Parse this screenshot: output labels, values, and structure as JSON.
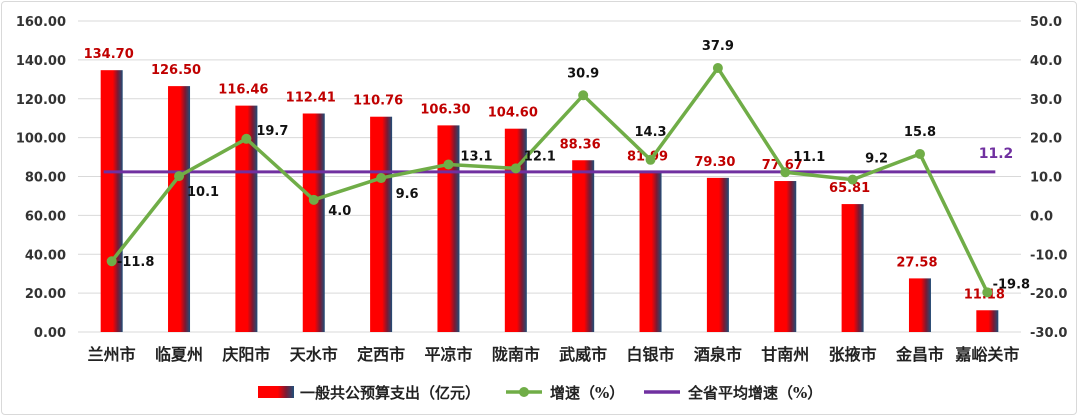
{
  "chart_data": {
    "type": "bar",
    "categories": [
      "兰州市",
      "临夏州",
      "庆阳市",
      "天水市",
      "定西市",
      "平凉市",
      "陇南市",
      "武威市",
      "白银市",
      "酒泉市",
      "甘南州",
      "张掖市",
      "金昌市",
      "嘉峪关市"
    ],
    "series": [
      {
        "name": "一般共公预算支出（亿元）",
        "type": "bar",
        "axis": "left",
        "values": [
          134.7,
          126.5,
          116.46,
          112.41,
          110.76,
          106.3,
          104.6,
          88.36,
          81.99,
          79.3,
          77.67,
          65.81,
          27.58,
          11.18
        ],
        "labels": [
          "134.70",
          "126.50",
          "116.46",
          "112.41",
          "110.76",
          "106.30",
          "104.60",
          "88.36",
          "81.99",
          "79.30",
          "77.67",
          "65.81",
          "27.58",
          "11.18"
        ]
      },
      {
        "name": "增速（%）",
        "type": "line",
        "axis": "right",
        "values": [
          -11.8,
          10.1,
          19.7,
          4.0,
          9.6,
          13.1,
          12.1,
          30.9,
          14.3,
          37.9,
          11.1,
          9.2,
          15.8,
          -19.8
        ],
        "labels": [
          "-11.8",
          "10.1",
          "19.7",
          "4.0",
          "9.6",
          "13.1",
          "12.1",
          "30.9",
          "14.3",
          "37.9",
          "11.1",
          "9.2",
          "15.8",
          "-19.8"
        ]
      },
      {
        "name": "全省平均增速（%）",
        "type": "line",
        "axis": "right",
        "value": 11.2,
        "label": "11.2"
      }
    ],
    "yleft": {
      "range": [
        0,
        160
      ],
      "ticks": [
        "0.00",
        "20.00",
        "40.00",
        "60.00",
        "80.00",
        "100.00",
        "120.00",
        "140.00",
        "160.00"
      ]
    },
    "yright": {
      "range": [
        -30,
        50
      ],
      "ticks": [
        "-30.0",
        "-20.0",
        "-10.0",
        "0.0",
        "10.0",
        "20.0",
        "30.0",
        "40.0",
        "50.0"
      ]
    },
    "grid": true,
    "legend_position": "bottom",
    "colors": {
      "bar": "#ff0000",
      "bar_shade": "#1f4e79",
      "growth_line": "#70ad47",
      "avg_line": "#7030a0",
      "bar_label": "#c00000"
    }
  }
}
